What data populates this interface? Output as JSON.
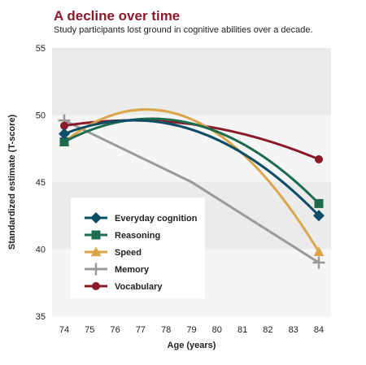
{
  "chart_data": {
    "type": "line",
    "title": "A decline over time",
    "subtitle": "Study participants lost ground in cognitive abilities over a decade.",
    "xlabel": "Age (years)",
    "ylabel": "Standardized estimate (T-score)",
    "xlim": [
      74,
      84
    ],
    "ylim": [
      35,
      55
    ],
    "xticks": [
      74,
      75,
      76,
      77,
      78,
      79,
      80,
      81,
      82,
      83,
      84
    ],
    "yticks": [
      35,
      40,
      45,
      50,
      55
    ],
    "legend_position": "lower-left",
    "series": [
      {
        "name": "Everyday cognition",
        "color": "#0e4d66",
        "marker": "diamond",
        "x": [
          74,
          84
        ],
        "y": [
          48.6,
          42.5
        ],
        "peak": [
          77,
          49.6
        ]
      },
      {
        "name": "Reasoning",
        "color": "#1e6b4e",
        "marker": "square",
        "x": [
          74,
          84
        ],
        "y": [
          48.0,
          43.4
        ],
        "peak": [
          77,
          49.7
        ]
      },
      {
        "name": "Speed",
        "color": "#dba64a",
        "marker": "triangle",
        "x": [
          74,
          84
        ],
        "y": [
          48.0,
          39.8
        ],
        "peak": [
          77,
          50.4
        ]
      },
      {
        "name": "Memory",
        "color": "#9a9a9a",
        "marker": "plus",
        "x": [
          74,
          79,
          84
        ],
        "y": [
          49.6,
          45.0,
          39.0
        ]
      },
      {
        "name": "Vocabulary",
        "color": "#8b1a2b",
        "marker": "circle",
        "x": [
          74,
          84
        ],
        "y": [
          49.2,
          46.7
        ],
        "peak": [
          77,
          49.6
        ]
      }
    ]
  }
}
